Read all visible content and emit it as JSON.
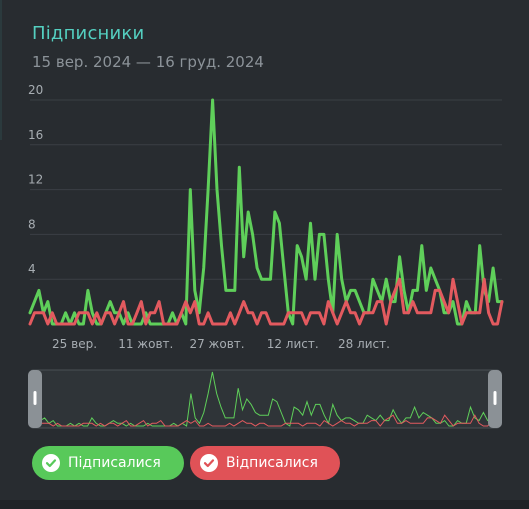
{
  "header": {
    "title": "Підписники",
    "date_range": "15 вер. 2024 — 16 груд. 2024"
  },
  "colors": {
    "subscribed": "#5fcf5a",
    "unsubscribed": "#e35a5f",
    "title": "#54cfc0",
    "grid": "#3a3f44",
    "axis_text": "#a7adb2"
  },
  "legend": {
    "subscribed_label": "Підписалися",
    "unsubscribed_label": "Відписалися",
    "icon": "check-icon"
  },
  "chart_data": {
    "type": "line",
    "title": "Підписники",
    "subtitle": "15 вер. 2024 — 16 груд. 2024",
    "ylim": [
      0,
      20
    ],
    "y_ticks": [
      "4",
      "8",
      "12",
      "16",
      "20"
    ],
    "x_tick_labels": [
      "25 вер.",
      "11 жовт.",
      "27 жовт.",
      "12 лист.",
      "28 лист."
    ],
    "x_tick_index": [
      10,
      26,
      42,
      59,
      75
    ],
    "grid": true,
    "series": [
      {
        "name": "Підписалися",
        "values": [
          1,
          2,
          3,
          1,
          2,
          0,
          0,
          0,
          1,
          0,
          1,
          0,
          0,
          3,
          1,
          0,
          0,
          1,
          2,
          1,
          1,
          0,
          1,
          0,
          0,
          0,
          1,
          0,
          0,
          0,
          0,
          0,
          1,
          0,
          1,
          0,
          12,
          3,
          1,
          5,
          12,
          20,
          12,
          7,
          3,
          3,
          3,
          14,
          6,
          10,
          8,
          5,
          4,
          4,
          4,
          10,
          9,
          5,
          1,
          0,
          7,
          6,
          4,
          9,
          4,
          8,
          8,
          4,
          1,
          8,
          4,
          2,
          3,
          3,
          2,
          1,
          1,
          4,
          3,
          2,
          4,
          2,
          2,
          6,
          3,
          1,
          3,
          3,
          7,
          3,
          5,
          4,
          3,
          1,
          1,
          2,
          0,
          0,
          2,
          1,
          1,
          7,
          3,
          2,
          5,
          2,
          2
        ]
      },
      {
        "name": "Відписалися",
        "values": [
          0,
          1,
          1,
          1,
          0,
          1,
          0,
          0,
          0,
          0,
          0,
          1,
          1,
          1,
          0,
          1,
          0,
          1,
          1,
          0,
          1,
          2,
          0,
          0,
          1,
          2,
          0,
          1,
          1,
          2,
          0,
          0,
          0,
          0,
          1,
          2,
          1,
          2,
          0,
          0,
          1,
          0,
          0,
          0,
          0,
          1,
          0,
          1,
          2,
          1,
          1,
          0,
          1,
          1,
          0,
          0,
          0,
          0,
          1,
          1,
          1,
          1,
          0,
          1,
          1,
          1,
          0,
          2,
          1,
          0,
          1,
          2,
          1,
          1,
          0,
          1,
          1,
          1,
          2,
          2,
          0,
          2,
          3,
          4,
          1,
          1,
          2,
          1,
          1,
          1,
          1,
          3,
          3,
          2,
          1,
          4,
          2,
          0,
          1,
          1,
          1,
          1,
          4,
          1,
          0,
          0,
          2
        ]
      }
    ]
  }
}
